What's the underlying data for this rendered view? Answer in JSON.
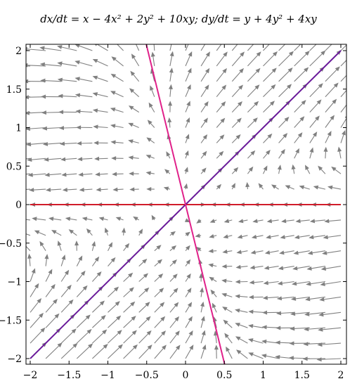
{
  "chart_data": {
    "type": "vector_field",
    "title": "dx/dt = x − 4x² + 2y² + 10xy;  dy/dt = y + 4y² + 4xy",
    "equations": {
      "dx": "x - 4x^2 + 2y^2 + 10xy",
      "dy": "y + 4y^2 + 4xy"
    },
    "xlabel": "",
    "ylabel": "",
    "xlim": [
      -2.1,
      2.1
    ],
    "ylim": [
      -2.1,
      2.1
    ],
    "xticks": [
      -2,
      -1.5,
      -1,
      -0.5,
      0,
      0.5,
      1,
      1.5,
      2
    ],
    "yticks": [
      -2,
      -1.5,
      -1,
      -0.5,
      0,
      0.5,
      1,
      1.5,
      2
    ],
    "xtick_labels": [
      "−2",
      "−1.5",
      "−1",
      "−0.5",
      "0",
      "0.5",
      "1",
      "1.5",
      "2"
    ],
    "ytick_labels": [
      "−2",
      "−1.5",
      "−1",
      "−0.5",
      "0",
      "0.5",
      "1",
      "1.5",
      "2"
    ],
    "grid": false,
    "field": {
      "x_min": -2,
      "x_max": 2,
      "y_min": -2,
      "y_max": 2,
      "steps": 21
    },
    "lines": [
      {
        "id": "x-axis-line",
        "color": "#d01c2a",
        "points": [
          [
            -2,
            0
          ],
          [
            2,
            0
          ]
        ]
      },
      {
        "id": "diagonal-line",
        "color": "#6a1b9a",
        "points": [
          [
            -2,
            -2
          ],
          [
            2,
            2
          ]
        ]
      },
      {
        "id": "steep-line",
        "color": "#e0218a",
        "points": [
          [
            -0.51,
            2.1
          ],
          [
            0.51,
            -2.1
          ]
        ]
      }
    ],
    "colors": {
      "arrow": "#808080",
      "frame": "#000000"
    }
  }
}
